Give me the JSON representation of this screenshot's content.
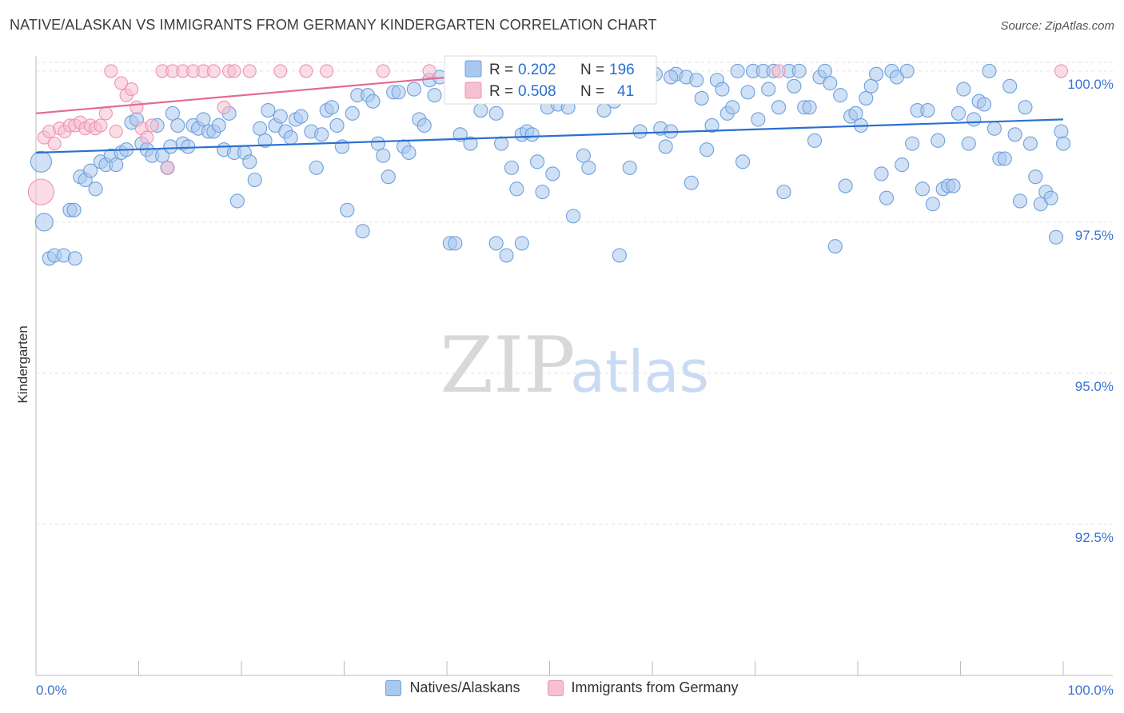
{
  "header": {
    "title": "NATIVE/ALASKAN VS IMMIGRANTS FROM GERMANY KINDERGARTEN CORRELATION CHART",
    "source": "Source: ZipAtlas.com"
  },
  "watermark": {
    "zip": "ZIP",
    "atlas": "atlas"
  },
  "stats": {
    "r_label": "R =",
    "n_label": "N =",
    "natives": {
      "r": "0.202",
      "n": "196"
    },
    "germany": {
      "r": "0.508",
      "n": "41"
    }
  },
  "legend": {
    "natives_label": "Natives/Alaskans",
    "germany_label": "Immigrants from Germany"
  },
  "colors": {
    "natives_fill": "#a9c8ef",
    "natives_stroke": "#6f9fdc",
    "natives_line": "#2b6fd1",
    "germany_fill": "#f7c0d1",
    "germany_stroke": "#ec94b0",
    "germany_line": "#e36a92",
    "tick_label": "#3b72cf"
  },
  "chart_data": {
    "type": "scatter",
    "title": "NATIVE/ALASKAN VS IMMIGRANTS FROM GERMANY KINDERGARTEN CORRELATION CHART",
    "xlabel": "",
    "ylabel": "Kindergarten",
    "xlim": [
      0,
      100
    ],
    "ylim": [
      90.0,
      100.25
    ],
    "x_tick_labels": [
      "0.0%",
      "100.0%"
    ],
    "y_ticks": [
      100.0,
      97.5,
      95.0,
      92.5
    ],
    "y_tick_labels": [
      "100.0%",
      "97.5%",
      "95.0%",
      "92.5%"
    ],
    "grid": true,
    "series": [
      {
        "name": "Natives/Alaskans",
        "trend": {
          "x": [
            0,
            100
          ],
          "y": [
            98.65,
            99.2
          ]
        },
        "points": [
          [
            0.5,
            98.5
          ],
          [
            0.8,
            97.5
          ],
          [
            1.3,
            96.9
          ],
          [
            1.8,
            96.95
          ],
          [
            2.7,
            96.95
          ],
          [
            3.3,
            97.7
          ],
          [
            3.7,
            97.7
          ],
          [
            4.3,
            98.25
          ],
          [
            4.8,
            98.2
          ],
          [
            5.3,
            98.35
          ],
          [
            5.8,
            98.05
          ],
          [
            6.3,
            98.5
          ],
          [
            6.8,
            98.45
          ],
          [
            7.3,
            98.6
          ],
          [
            7.8,
            98.45
          ],
          [
            8.3,
            98.65
          ],
          [
            8.8,
            98.7
          ],
          [
            9.3,
            99.15
          ],
          [
            9.8,
            99.2
          ],
          [
            10.3,
            98.8
          ],
          [
            10.8,
            98.7
          ],
          [
            11.3,
            98.6
          ],
          [
            11.8,
            99.1
          ],
          [
            12.3,
            98.6
          ],
          [
            12.8,
            98.4
          ],
          [
            13.1,
            98.75
          ],
          [
            13.3,
            99.3
          ],
          [
            13.8,
            99.1
          ],
          [
            14.3,
            98.8
          ],
          [
            14.8,
            98.75
          ],
          [
            15.3,
            99.1
          ],
          [
            15.8,
            99.05
          ],
          [
            16.3,
            99.2
          ],
          [
            16.8,
            99.0
          ],
          [
            17.3,
            99.0
          ],
          [
            17.8,
            99.1
          ],
          [
            18.3,
            98.7
          ],
          [
            18.8,
            99.3
          ],
          [
            19.3,
            98.65
          ],
          [
            19.6,
            97.85
          ],
          [
            20.3,
            98.65
          ],
          [
            20.8,
            98.5
          ],
          [
            21.3,
            98.2
          ],
          [
            21.8,
            99.05
          ],
          [
            22.3,
            98.85
          ],
          [
            22.6,
            99.35
          ],
          [
            23.3,
            99.1
          ],
          [
            23.8,
            99.25
          ],
          [
            24.3,
            99.0
          ],
          [
            24.8,
            98.9
          ],
          [
            25.3,
            99.2
          ],
          [
            25.8,
            99.25
          ],
          [
            26.8,
            99.0
          ],
          [
            27.3,
            98.4
          ],
          [
            27.8,
            98.95
          ],
          [
            28.3,
            99.35
          ],
          [
            28.8,
            99.4
          ],
          [
            29.3,
            99.1
          ],
          [
            29.8,
            98.75
          ],
          [
            30.3,
            97.7
          ],
          [
            30.8,
            99.3
          ],
          [
            31.3,
            99.6
          ],
          [
            31.8,
            97.35
          ],
          [
            32.3,
            99.6
          ],
          [
            32.8,
            99.5
          ],
          [
            33.3,
            98.8
          ],
          [
            33.8,
            98.6
          ],
          [
            34.3,
            98.25
          ],
          [
            34.8,
            99.65
          ],
          [
            35.3,
            99.65
          ],
          [
            35.8,
            98.75
          ],
          [
            36.3,
            98.65
          ],
          [
            36.8,
            99.7
          ],
          [
            37.3,
            99.2
          ],
          [
            37.8,
            99.1
          ],
          [
            38.3,
            99.85
          ],
          [
            38.8,
            99.6
          ],
          [
            39.3,
            99.9
          ],
          [
            40.3,
            97.15
          ],
          [
            40.8,
            97.15
          ],
          [
            41.3,
            98.95
          ],
          [
            42.3,
            98.8
          ],
          [
            42.8,
            99.9
          ],
          [
            43.3,
            99.35
          ],
          [
            44.8,
            97.15
          ],
          [
            45.3,
            98.8
          ],
          [
            45.8,
            96.95
          ],
          [
            46.3,
            98.4
          ],
          [
            46.8,
            98.05
          ],
          [
            47.3,
            98.95
          ],
          [
            47.8,
            99.0
          ],
          [
            48.3,
            98.95
          ],
          [
            48.8,
            98.5
          ],
          [
            49.3,
            98.0
          ],
          [
            49.8,
            99.4
          ],
          [
            50.3,
            98.3
          ],
          [
            50.8,
            99.45
          ],
          [
            51.8,
            99.4
          ],
          [
            52.3,
            97.6
          ],
          [
            53.3,
            98.6
          ],
          [
            53.8,
            98.4
          ],
          [
            54.3,
            99.85
          ],
          [
            54.8,
            99.85
          ],
          [
            55.3,
            99.35
          ],
          [
            56.3,
            99.5
          ],
          [
            56.8,
            99.9
          ],
          [
            56.8,
            96.95
          ],
          [
            57.8,
            98.4
          ],
          [
            58.3,
            99.9
          ],
          [
            58.8,
            99.0
          ],
          [
            59.3,
            99.95
          ],
          [
            59.8,
            99.95
          ],
          [
            60.3,
            99.95
          ],
          [
            60.8,
            99.05
          ],
          [
            61.3,
            98.75
          ],
          [
            61.8,
            99.0
          ],
          [
            62.3,
            99.95
          ],
          [
            63.3,
            99.9
          ],
          [
            63.8,
            98.15
          ],
          [
            64.3,
            99.85
          ],
          [
            64.8,
            99.55
          ],
          [
            65.3,
            98.7
          ],
          [
            65.8,
            99.1
          ],
          [
            66.3,
            99.85
          ],
          [
            66.8,
            99.7
          ],
          [
            67.3,
            99.3
          ],
          [
            67.8,
            99.4
          ],
          [
            68.3,
            100.0
          ],
          [
            68.8,
            98.5
          ],
          [
            69.3,
            99.65
          ],
          [
            69.8,
            100.0
          ],
          [
            70.3,
            99.2
          ],
          [
            70.8,
            100.0
          ],
          [
            71.3,
            99.7
          ],
          [
            71.8,
            100.0
          ],
          [
            72.3,
            99.4
          ],
          [
            72.8,
            98.0
          ],
          [
            73.3,
            100.0
          ],
          [
            73.8,
            99.75
          ],
          [
            74.3,
            100.0
          ],
          [
            74.8,
            99.4
          ],
          [
            75.3,
            99.4
          ],
          [
            75.8,
            98.85
          ],
          [
            76.3,
            99.9
          ],
          [
            76.8,
            100.0
          ],
          [
            77.3,
            99.8
          ],
          [
            77.8,
            97.1
          ],
          [
            78.3,
            99.6
          ],
          [
            78.8,
            98.1
          ],
          [
            79.3,
            99.25
          ],
          [
            79.8,
            99.3
          ],
          [
            80.3,
            99.1
          ],
          [
            80.8,
            99.55
          ],
          [
            81.3,
            99.75
          ],
          [
            81.8,
            99.95
          ],
          [
            82.3,
            98.3
          ],
          [
            82.8,
            97.9
          ],
          [
            83.3,
            100.0
          ],
          [
            83.8,
            99.9
          ],
          [
            84.3,
            98.45
          ],
          [
            84.8,
            100.0
          ],
          [
            85.3,
            98.8
          ],
          [
            85.8,
            99.35
          ],
          [
            86.3,
            98.05
          ],
          [
            86.8,
            99.35
          ],
          [
            87.3,
            97.8
          ],
          [
            87.8,
            98.85
          ],
          [
            88.3,
            98.05
          ],
          [
            88.8,
            98.1
          ],
          [
            89.3,
            98.1
          ],
          [
            89.8,
            99.3
          ],
          [
            90.3,
            99.7
          ],
          [
            90.8,
            98.8
          ],
          [
            91.3,
            99.2
          ],
          [
            91.8,
            99.5
          ],
          [
            92.3,
            99.45
          ],
          [
            92.8,
            100.0
          ],
          [
            93.3,
            99.05
          ],
          [
            93.8,
            98.55
          ],
          [
            94.3,
            98.55
          ],
          [
            94.8,
            99.75
          ],
          [
            95.3,
            98.95
          ],
          [
            95.8,
            97.85
          ],
          [
            96.3,
            99.4
          ],
          [
            96.8,
            98.8
          ],
          [
            97.3,
            98.25
          ],
          [
            97.8,
            97.8
          ],
          [
            98.3,
            98.0
          ],
          [
            98.8,
            97.9
          ],
          [
            99.3,
            97.25
          ],
          [
            99.8,
            99.0
          ],
          [
            100.0,
            98.8
          ],
          [
            3.8,
            96.9
          ],
          [
            44.8,
            99.3
          ],
          [
            47.3,
            97.15
          ],
          [
            61.8,
            99.9
          ]
        ]
      },
      {
        "name": "Immigrants from Germany",
        "trend": {
          "x": [
            0,
            45
          ],
          "y": [
            99.3,
            99.97
          ]
        },
        "points": [
          [
            0.5,
            98.0
          ],
          [
            0.8,
            98.9
          ],
          [
            1.3,
            99.0
          ],
          [
            1.8,
            98.8
          ],
          [
            2.3,
            99.05
          ],
          [
            2.8,
            99.0
          ],
          [
            3.3,
            99.1
          ],
          [
            3.8,
            99.1
          ],
          [
            4.3,
            99.15
          ],
          [
            4.8,
            99.05
          ],
          [
            5.3,
            99.1
          ],
          [
            5.8,
            99.05
          ],
          [
            6.3,
            99.1
          ],
          [
            6.8,
            99.3
          ],
          [
            7.3,
            100.0
          ],
          [
            7.8,
            99.0
          ],
          [
            8.3,
            99.8
          ],
          [
            8.8,
            99.6
          ],
          [
            9.3,
            99.7
          ],
          [
            9.8,
            99.4
          ],
          [
            10.3,
            99.05
          ],
          [
            10.8,
            98.9
          ],
          [
            11.3,
            99.1
          ],
          [
            12.3,
            100.0
          ],
          [
            12.8,
            98.4
          ],
          [
            13.3,
            100.0
          ],
          [
            14.3,
            100.0
          ],
          [
            15.3,
            100.0
          ],
          [
            16.3,
            100.0
          ],
          [
            17.3,
            100.0
          ],
          [
            18.3,
            99.4
          ],
          [
            18.8,
            100.0
          ],
          [
            19.3,
            100.0
          ],
          [
            20.8,
            100.0
          ],
          [
            23.8,
            100.0
          ],
          [
            26.3,
            100.0
          ],
          [
            28.3,
            100.0
          ],
          [
            33.8,
            100.0
          ],
          [
            38.3,
            100.0
          ],
          [
            72.3,
            100.0
          ],
          [
            99.8,
            100.0
          ]
        ]
      }
    ]
  }
}
